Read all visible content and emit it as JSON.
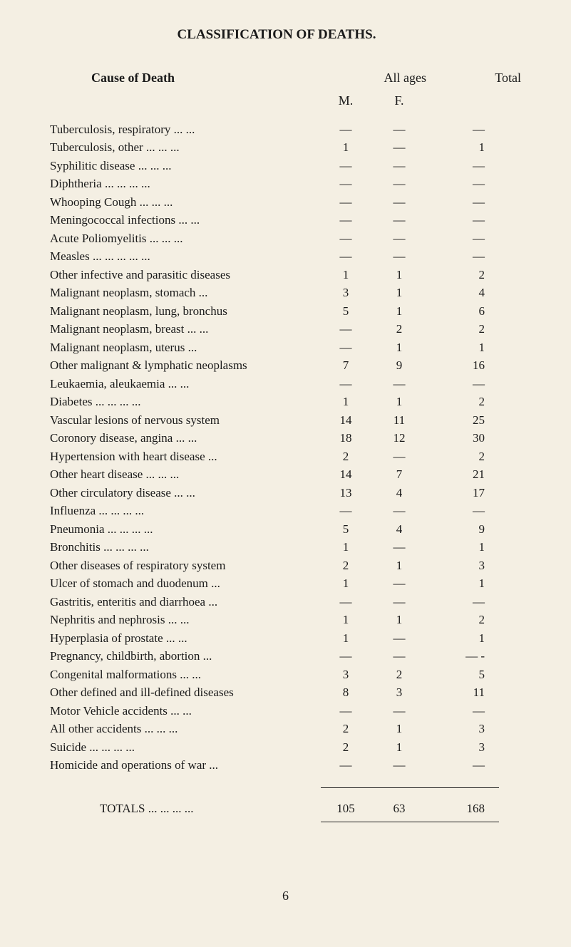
{
  "title": "CLASSIFICATION OF DEATHS.",
  "headers": {
    "cause": "Cause of Death",
    "ages": "All ages",
    "total": "Total",
    "m": "M.",
    "f": "F."
  },
  "colors": {
    "background": "#f4efe3",
    "text": "#1a1a1a",
    "rule": "#222222"
  },
  "font": {
    "family": "Georgia, Times New Roman, serif",
    "body_size": 17,
    "title_size": 19
  },
  "rows": [
    {
      "label": "Tuberculosis, respiratory   ...      ...",
      "m": "—",
      "f": "—",
      "t": "—"
    },
    {
      "label": "Tuberculosis, other     ...      ...      ...",
      "m": "1",
      "f": "—",
      "t": "1"
    },
    {
      "label": "Syphilitic disease          ...      ...      ...",
      "m": "—",
      "f": "—",
      "t": "—"
    },
    {
      "label": "Diphtheria       ...      ...      ...      ...",
      "m": "—",
      "f": "—",
      "t": "—"
    },
    {
      "label": "Whooping Cough        ...      ...      ...",
      "m": "—",
      "f": "—",
      "t": "—"
    },
    {
      "label": "Meningococcal infections     ...      ...",
      "m": "—",
      "f": "—",
      "t": "—"
    },
    {
      "label": "Acute Poliomyelitis   ...      ...      ...",
      "m": "—",
      "f": "—",
      "t": "—"
    },
    {
      "label": "Measles ...      ...      ...      ...      ...",
      "m": "—",
      "f": "—",
      "t": "—"
    },
    {
      "label": "Other infective and parasitic diseases",
      "m": "1",
      "f": "1",
      "t": "2"
    },
    {
      "label": "Malignant neoplasm, stomach         ...",
      "m": "3",
      "f": "1",
      "t": "4"
    },
    {
      "label": "Malignant neoplasm, lung, bronchus",
      "m": "5",
      "f": "1",
      "t": "6"
    },
    {
      "label": "Malignant neoplasm, breast ...      ...",
      "m": "—",
      "f": "2",
      "t": "2"
    },
    {
      "label": "Malignant neoplasm, uterus          ...",
      "m": "—",
      "f": "1",
      "t": "1"
    },
    {
      "label": "Other malignant & lymphatic neoplasms",
      "m": "7",
      "f": "9",
      "t": "16"
    },
    {
      "label": "Leukaemia, aleukaemia        ...      ...",
      "m": "—",
      "f": "—",
      "t": "—"
    },
    {
      "label": "Diabetes           ...      ...      ...      ...",
      "m": "1",
      "f": "1",
      "t": "2"
    },
    {
      "label": "Vascular lesions of nervous system",
      "m": "14",
      "f": "11",
      "t": "25"
    },
    {
      "label": "Coronory disease, angina       ...      ...",
      "m": "18",
      "f": "12",
      "t": "30"
    },
    {
      "label": "Hypertension with heart disease     ...",
      "m": "2",
      "f": "—",
      "t": "2"
    },
    {
      "label": "Other heart disease     ...      ...      ...",
      "m": "14",
      "f": "7",
      "t": "21"
    },
    {
      "label": "Other circulatory disease      ...      ...",
      "m": "13",
      "f": "4",
      "t": "17"
    },
    {
      "label": "Influenza          ...      ...      ...      ...",
      "m": "—",
      "f": "—",
      "t": "—"
    },
    {
      "label": "Pneumonia        ...      ...      ...      ...",
      "m": "5",
      "f": "4",
      "t": "9"
    },
    {
      "label": "Bronchitis         ...      ...      ...      ...",
      "m": "1",
      "f": "—",
      "t": "1"
    },
    {
      "label": "Other diseases of respiratory system",
      "m": "2",
      "f": "1",
      "t": "3"
    },
    {
      "label": "Ulcer of stomach and duodenum    ...",
      "m": "1",
      "f": "—",
      "t": "1"
    },
    {
      "label": "Gastritis, enteritis and diarrhoea    ...",
      "m": "—",
      "f": "—",
      "t": "—"
    },
    {
      "label": "Nephritis and nephrosis         ...      ...",
      "m": "1",
      "f": "1",
      "t": "2"
    },
    {
      "label": "Hyperplasia of prostate         ...      ...",
      "m": "1",
      "f": "—",
      "t": "1"
    },
    {
      "label": "Pregnancy, childbirth, abortion      ...",
      "m": "—",
      "f": "—",
      "t": "— -"
    },
    {
      "label": "Congenital malformations      ...      ...",
      "m": "3",
      "f": "2",
      "t": "5"
    },
    {
      "label": "Other defined and ill-defined diseases",
      "m": "8",
      "f": "3",
      "t": "11"
    },
    {
      "label": "Motor Vehicle accidents        ...      ...",
      "m": "—",
      "f": "—",
      "t": "—"
    },
    {
      "label": "All other accidents     ...      ...      ...",
      "m": "2",
      "f": "1",
      "t": "3"
    },
    {
      "label": "Suicide             ...      ...      ...      ...",
      "m": "2",
      "f": "1",
      "t": "3"
    },
    {
      "label": "Homicide and operations of war     ...",
      "m": "—",
      "f": "—",
      "t": "—"
    }
  ],
  "totals": {
    "label": "TOTALS ...      ...      ...      ...",
    "m": "105",
    "f": "63",
    "t": "168"
  },
  "page_number": "6"
}
